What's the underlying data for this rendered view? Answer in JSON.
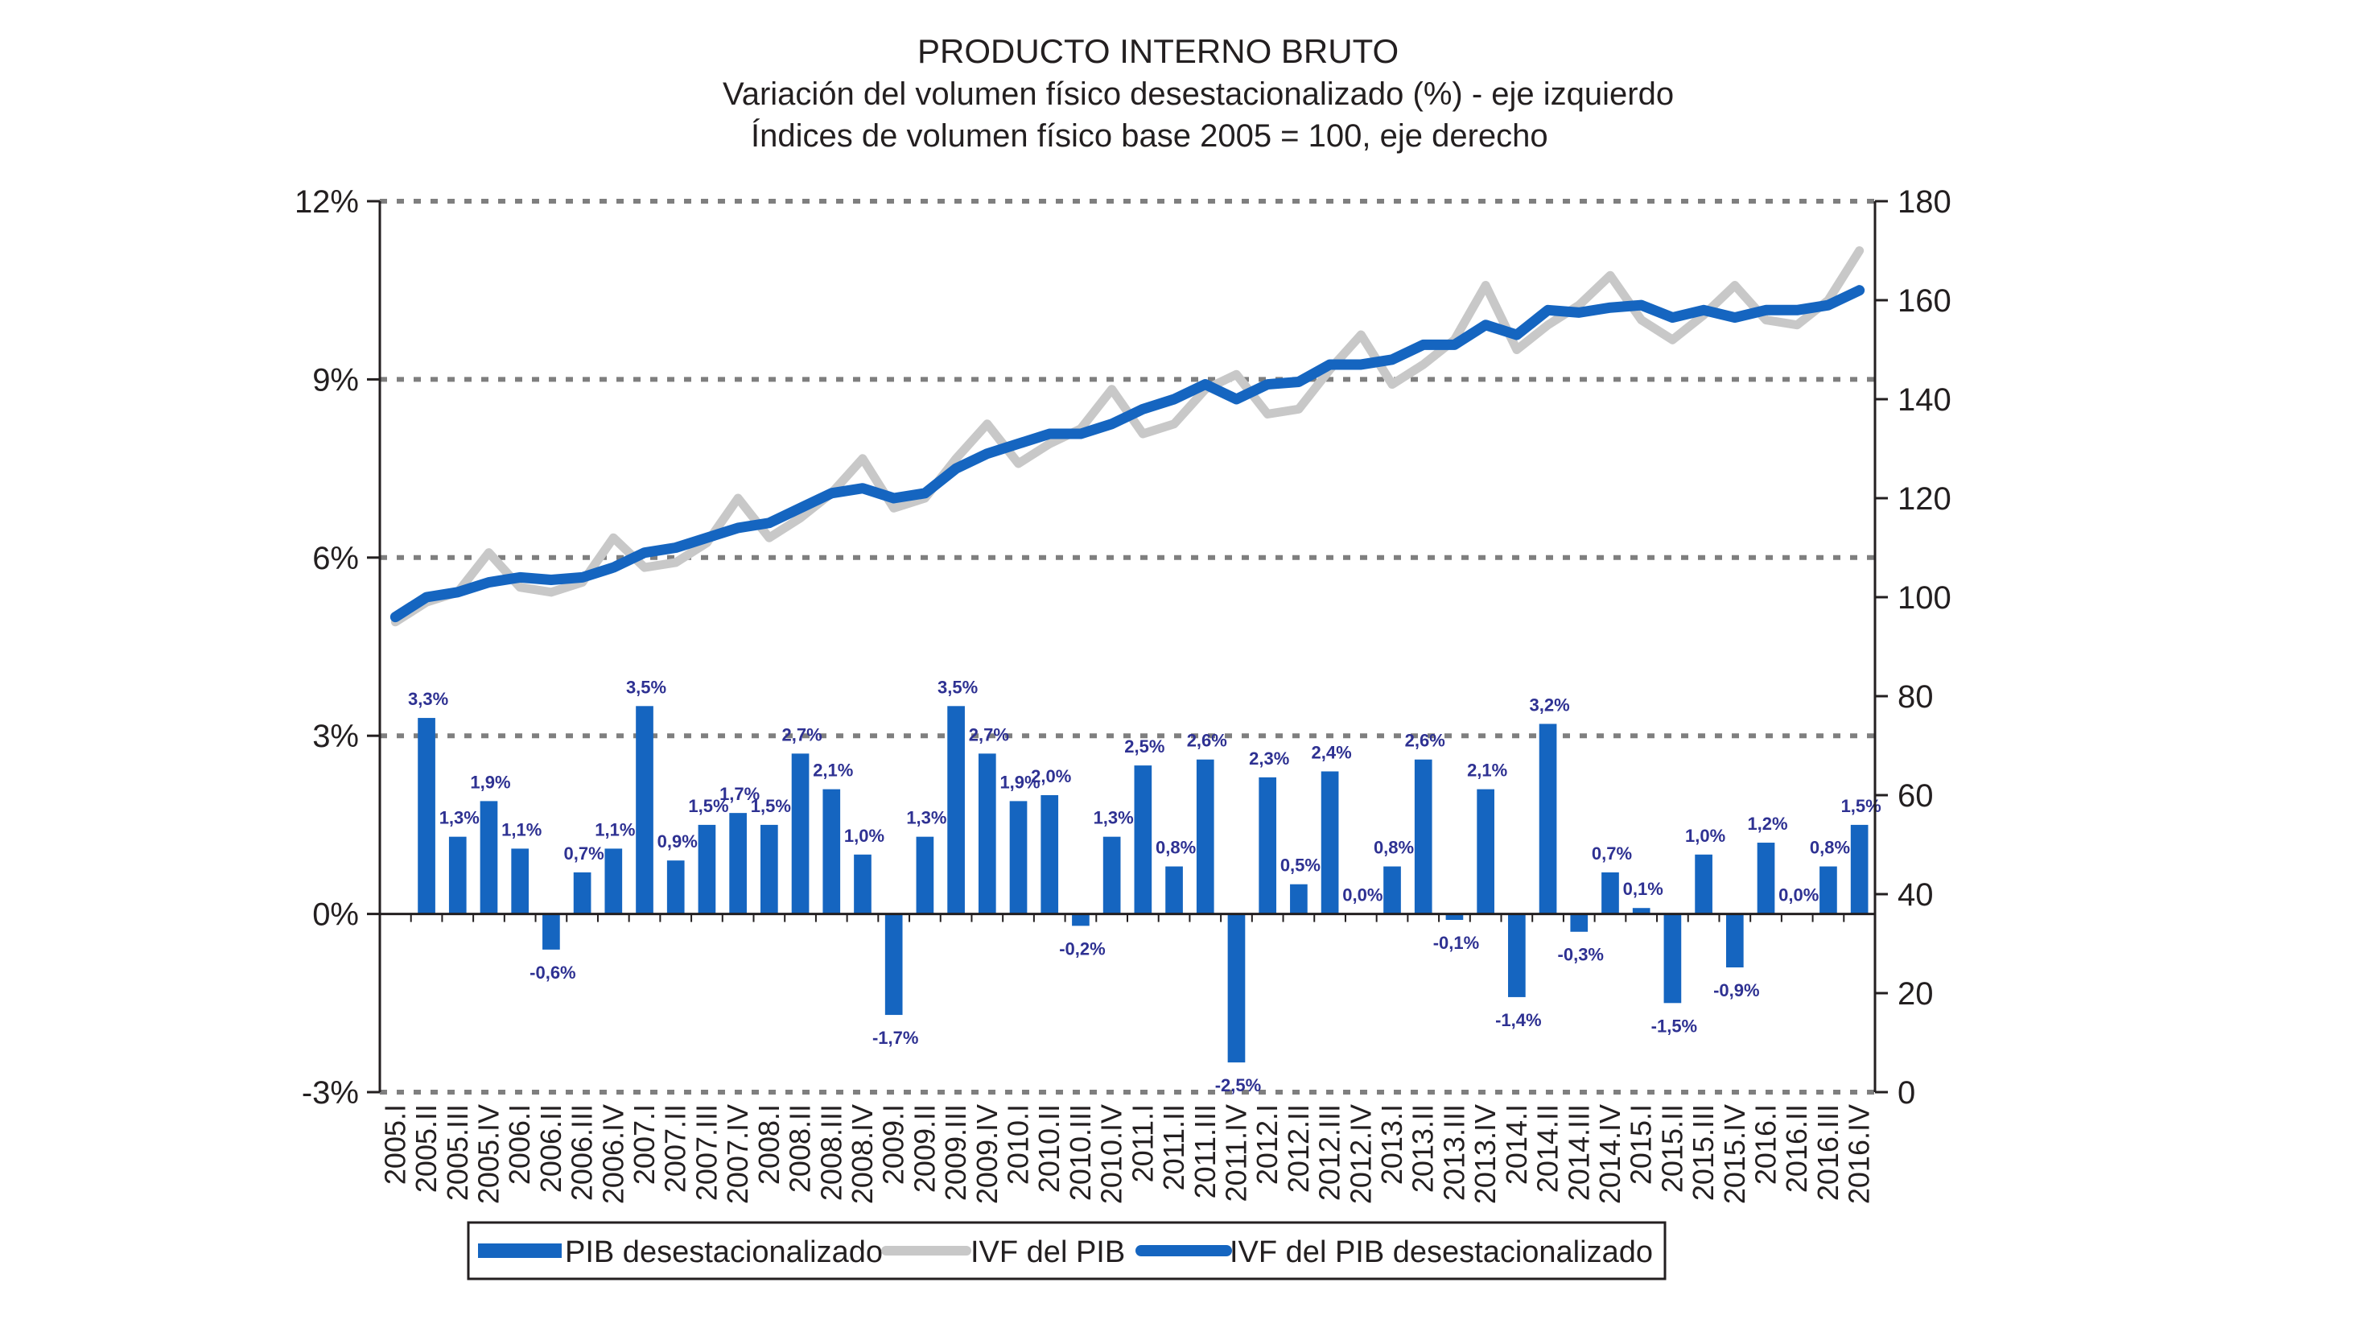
{
  "chart_data": {
    "type": "bar+line",
    "title": "PRODUCTO INTERNO BRUTO",
    "subtitle_1": "Variación del volumen físico desestacionalizado (%) - eje izquierdo",
    "subtitle_2": "Índices de volumen físico base 2005 = 100, eje derecho",
    "left_axis": {
      "ylim": [
        -3,
        12
      ],
      "ticks": [
        -3,
        0,
        3,
        6,
        9,
        12
      ],
      "tick_labels": [
        "-3%",
        "0%",
        "3%",
        "6%",
        "9%",
        "12%"
      ]
    },
    "right_axis": {
      "ylim": [
        0,
        180
      ],
      "ticks": [
        0,
        20,
        40,
        60,
        80,
        100,
        120,
        140,
        160,
        180
      ],
      "tick_labels": [
        "0",
        "20",
        "40",
        "60",
        "80",
        "100",
        "120",
        "140",
        "160",
        "180"
      ]
    },
    "categories": [
      "2005.I",
      "2005.II",
      "2005.III",
      "2005.IV",
      "2006.I",
      "2006.II",
      "2006.III",
      "2006.IV",
      "2007.I",
      "2007.II",
      "2007.III",
      "2007.IV",
      "2008.I",
      "2008.II",
      "2008.III",
      "2008.IV",
      "2009.I",
      "2009.II",
      "2009.III",
      "2009.IV",
      "2010.I",
      "2010.II",
      "2010.III",
      "2010.IV",
      "2011.I",
      "2011.II",
      "2011.III",
      "2011.IV",
      "2012.I",
      "2012.II",
      "2012.III",
      "2012.IV",
      "2013.I",
      "2013.II",
      "2013.III",
      "2013.IV",
      "2014.I",
      "2014.II",
      "2014.III",
      "2014.IV",
      "2015.I",
      "2015.II",
      "2015.III",
      "2015.IV",
      "2016.I",
      "2016.II",
      "2016.III",
      "2016.IV"
    ],
    "series": [
      {
        "name": "PIB desestacionalizado",
        "type": "bar",
        "axis": "left",
        "color": "#1565c0",
        "values": [
          null,
          3.3,
          1.3,
          1.9,
          1.1,
          -0.6,
          0.7,
          1.1,
          3.5,
          0.9,
          1.5,
          1.7,
          1.5,
          2.7,
          2.1,
          1.0,
          -1.7,
          1.3,
          3.5,
          2.7,
          1.9,
          2.0,
          -0.2,
          1.3,
          2.5,
          0.8,
          2.6,
          -2.5,
          2.3,
          0.5,
          2.4,
          0.0,
          0.8,
          2.6,
          -0.1,
          2.1,
          -1.4,
          3.2,
          -0.3,
          0.7,
          0.1,
          -1.5,
          1.0,
          -0.9,
          1.2,
          0.0,
          0.8,
          1.5
        ],
        "labels": [
          "",
          "3,3%",
          "1,3%",
          "1,9%",
          "1,1%",
          "-0,6%",
          "0,7%",
          "1,1%",
          "3,5%",
          "0,9%",
          "1,5%",
          "1,7%",
          "1,5%",
          "2,7%",
          "2,1%",
          "1,0%",
          "-1,7%",
          "1,3%",
          "3,5%",
          "2,7%",
          "1,9%",
          "2,0%",
          "-0,2%",
          "1,3%",
          "2,5%",
          "0,8%",
          "2,6%",
          "-2,5%",
          "2,3%",
          "0,5%",
          "2,4%",
          "0,0%",
          "0,8%",
          "2,6%",
          "-0,1%",
          "2,1%",
          "-1,4%",
          "3,2%",
          "-0,3%",
          "0,7%",
          "0,1%",
          "-1,5%",
          "1,0%",
          "-0,9%",
          "1,2%",
          "0,0%",
          "0,8%",
          "1,5%"
        ]
      },
      {
        "name": "IVF del PIB",
        "type": "line",
        "axis": "right",
        "color": "#c8c8c8",
        "values": [
          95,
          99,
          101,
          109,
          102,
          101,
          103,
          112,
          106,
          107,
          111,
          120,
          112,
          116,
          121,
          128,
          118,
          120,
          128,
          135,
          127,
          131,
          134,
          142,
          133,
          135,
          142,
          145,
          137,
          138,
          146,
          153,
          143,
          147,
          152,
          163,
          150,
          155,
          159,
          165,
          156,
          152,
          157,
          163,
          156,
          155,
          160,
          170
        ]
      },
      {
        "name": "IVF del PIB desestacionalizado",
        "type": "line",
        "axis": "right",
        "color": "#1565c0",
        "values": [
          96,
          100,
          101,
          103,
          104,
          103.5,
          104,
          106,
          109,
          110,
          112,
          114,
          115,
          118,
          121,
          122,
          120,
          121,
          126,
          129,
          131,
          133,
          133,
          135,
          138,
          140,
          143,
          140,
          143,
          143.5,
          147,
          147,
          148,
          151,
          151,
          155,
          153,
          158,
          157.5,
          158.5,
          159,
          156.5,
          158,
          156.5,
          158,
          158,
          159,
          162
        ]
      }
    ],
    "legend": {
      "position": "bottom",
      "items": [
        "PIB desestacionalizado",
        "IVF del PIB",
        "IVF del PIB desestacionalizado"
      ]
    }
  }
}
